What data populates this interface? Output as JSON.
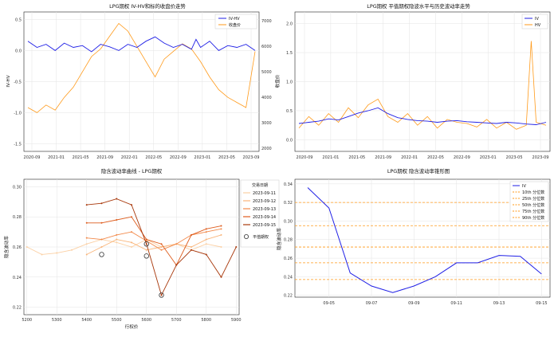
{
  "charts": [
    {
      "type": "line",
      "title": "LPG期权 IV-HV和标的收盘价走势",
      "ylabel_left": "IV-HV",
      "ylabel_right": "收盘价",
      "x_ticks": [
        "2020-09",
        "2021-01",
        "2021-05",
        "2021-09",
        "2022-01",
        "2022-05",
        "2022-09",
        "2023-01",
        "2023-05",
        "2023-09"
      ],
      "y_left_ticks": [
        0.5,
        0.0,
        -0.5,
        -1.0,
        -1.5
      ],
      "y_left_tick_labels": [
        "0.5",
        "0.0",
        "-0.5",
        "-1.0",
        "-1.5"
      ],
      "ylim_left": [
        -1.62,
        0.62
      ],
      "y_right_ticks": [
        2000,
        3000,
        4000,
        5000,
        6000,
        7000
      ],
      "y_right_tick_labels": [
        "2000",
        "3000",
        "4000",
        "5000",
        "6000",
        "7000"
      ],
      "ylim_right": [
        1880,
        7350
      ],
      "colors": {
        "left": "#1f1fe6",
        "right": "#ff9a1a",
        "right_axis": "#e03030"
      },
      "legend": {
        "position": "top-right",
        "entries": [
          "IV-HV",
          "收盘价"
        ]
      },
      "series": [
        {
          "name": "IV-HV",
          "axis": "left",
          "x": [
            0,
            2,
            4,
            6,
            8,
            10,
            12,
            14,
            16,
            18,
            20,
            22,
            24,
            26,
            28,
            30,
            32,
            34,
            36,
            37,
            38,
            40,
            42,
            44,
            46,
            48,
            50
          ],
          "y": [
            0.15,
            0.05,
            0.1,
            0.0,
            0.12,
            0.05,
            0.08,
            -0.02,
            0.1,
            0.06,
            0.0,
            0.1,
            0.05,
            0.15,
            0.22,
            0.12,
            0.05,
            0.1,
            0.02,
            0.18,
            0.05,
            0.15,
            0.0,
            0.08,
            0.05,
            0.1,
            0.0
          ]
        },
        {
          "name": "收盘价",
          "axis": "right",
          "x": [
            0,
            2,
            4,
            6,
            8,
            10,
            12,
            14,
            16,
            18,
            20,
            22,
            24,
            26,
            28,
            30,
            32,
            34,
            36,
            38,
            40,
            42,
            44,
            46,
            48,
            50
          ],
          "y": [
            3600,
            3400,
            3700,
            3500,
            4000,
            4400,
            5000,
            5600,
            5900,
            6400,
            6900,
            6600,
            6000,
            5400,
            4800,
            5500,
            5800,
            6100,
            5900,
            5400,
            4800,
            4300,
            4000,
            3800,
            3600,
            5800
          ]
        }
      ]
    },
    {
      "type": "line",
      "title": "LPG期权 平值期权隐波水平与历史波动率走势",
      "x_ticks": [
        "2020-09",
        "2021-01",
        "2021-05",
        "2021-09",
        "2022-01",
        "2022-05",
        "2022-09",
        "2023-01",
        "2023-05",
        "2023-09"
      ],
      "y_ticks": [
        0.0,
        0.5,
        1.0,
        1.5,
        2.0
      ],
      "y_tick_labels": [
        "0.0",
        "0.5",
        "1.0",
        "1.5",
        "2.0"
      ],
      "ylim": [
        -0.2,
        2.2
      ],
      "legend": {
        "position": "top-right",
        "entries": [
          "IV",
          "HV"
        ]
      },
      "colors": {
        "IV": "#1f1fe6",
        "HV": "#ff9a1a"
      },
      "series": [
        {
          "name": "IV",
          "x": [
            0,
            2,
            4,
            6,
            8,
            10,
            12,
            14,
            16,
            18,
            20,
            22,
            24,
            26,
            28,
            30,
            32,
            34,
            36,
            38,
            40,
            42,
            44,
            46,
            48,
            50
          ],
          "y": [
            0.28,
            0.3,
            0.32,
            0.36,
            0.34,
            0.4,
            0.46,
            0.5,
            0.55,
            0.45,
            0.38,
            0.35,
            0.33,
            0.32,
            0.3,
            0.32,
            0.33,
            0.31,
            0.3,
            0.29,
            0.28,
            0.3,
            0.29,
            0.27,
            0.26,
            0.3
          ]
        },
        {
          "name": "HV",
          "x": [
            0,
            2,
            4,
            6,
            8,
            10,
            12,
            14,
            16,
            18,
            20,
            22,
            24,
            26,
            28,
            30,
            32,
            34,
            36,
            38,
            40,
            42,
            44,
            46,
            47,
            48,
            50
          ],
          "y": [
            0.2,
            0.4,
            0.25,
            0.45,
            0.3,
            0.55,
            0.38,
            0.6,
            0.7,
            0.4,
            0.3,
            0.45,
            0.25,
            0.4,
            0.2,
            0.35,
            0.3,
            0.28,
            0.22,
            0.35,
            0.2,
            0.3,
            0.18,
            0.25,
            1.7,
            0.3,
            0.25
          ]
        }
      ]
    },
    {
      "type": "line",
      "title": "隐含波动率曲线 - LPG期权",
      "xlabel": "行权价",
      "ylabel": "隐含波动率",
      "x_ticks": [
        5200,
        5300,
        5400,
        5500,
        5600,
        5700,
        5800,
        5900
      ],
      "y_ticks": [
        0.22,
        0.24,
        0.26,
        0.28,
        0.3
      ],
      "y_tick_labels": [
        "0.22",
        "0.24",
        "0.26",
        "0.28",
        "0.30"
      ],
      "xlim": [
        5190,
        5910
      ],
      "ylim": [
        0.215,
        0.305
      ],
      "legend": {
        "title": "交易日期",
        "position": "top-right",
        "marker_label": "平值期权"
      },
      "series": [
        {
          "name": "2023-09-11",
          "color": "#fbd0a4",
          "x": [
            5200,
            5250,
            5300,
            5350,
            5400,
            5450,
            5500,
            5550,
            5600,
            5650,
            5700,
            5750,
            5800,
            5850
          ],
          "y": [
            0.26,
            0.255,
            0.256,
            0.258,
            0.262,
            0.265,
            0.263,
            0.26,
            0.265,
            0.26,
            0.262,
            0.258,
            0.262,
            0.26
          ]
        },
        {
          "name": "2023-09-12",
          "color": "#f9b57a",
          "x": [
            5400,
            5450,
            5500,
            5550,
            5600,
            5650,
            5700,
            5750,
            5800,
            5850
          ],
          "y": [
            0.255,
            0.26,
            0.265,
            0.263,
            0.258,
            0.26,
            0.262,
            0.26,
            0.265,
            0.268
          ]
        },
        {
          "name": "2023-09-13",
          "color": "#f2894a",
          "x": [
            5400,
            5450,
            5500,
            5550,
            5600,
            5650,
            5700,
            5750,
            5800,
            5850
          ],
          "y": [
            0.266,
            0.265,
            0.268,
            0.27,
            0.264,
            0.258,
            0.262,
            0.268,
            0.27,
            0.272
          ]
        },
        {
          "name": "2023-09-14",
          "color": "#de5c1d",
          "x": [
            5400,
            5450,
            5500,
            5550,
            5600,
            5650,
            5700,
            5750,
            5800,
            5850
          ],
          "y": [
            0.276,
            0.276,
            0.278,
            0.28,
            0.265,
            0.262,
            0.248,
            0.268,
            0.272,
            0.274
          ]
        },
        {
          "name": "2023-09-15",
          "color": "#a8380b",
          "x": [
            5400,
            5450,
            5500,
            5550,
            5600,
            5650,
            5700,
            5750,
            5800,
            5850,
            5900
          ],
          "y": [
            0.288,
            0.289,
            0.292,
            0.288,
            0.262,
            0.228,
            0.248,
            0.258,
            0.255,
            0.24,
            0.26
          ]
        }
      ],
      "atm_points": [
        {
          "x": 5450,
          "y": 0.255
        },
        {
          "x": 5600,
          "y": 0.254
        },
        {
          "x": 5600,
          "y": 0.262
        },
        {
          "x": 5650,
          "y": 0.228
        }
      ]
    },
    {
      "type": "line",
      "title": "LPG期权 隐含波动率锥形图",
      "ylabel": "隐含波动率",
      "x_ticks": [
        "09-05",
        "09-07",
        "09-09",
        "09-11",
        "09-13",
        "09-15"
      ],
      "y_ticks": [
        0.22,
        0.24,
        0.26,
        0.28,
        0.3,
        0.32,
        0.34
      ],
      "y_tick_labels": [
        "0.22",
        "0.24",
        "0.26",
        "0.28",
        "0.30",
        "0.32",
        "0.34"
      ],
      "xlim": [
        3.4,
        15.4
      ],
      "ylim": [
        0.218,
        0.345
      ],
      "legend": {
        "position": "top-right"
      },
      "colors": {
        "IV": "#1f1fe6",
        "percentile": "#ff9a1a"
      },
      "series": [
        {
          "name": "IV",
          "x": [
            4,
            5,
            6,
            7,
            8,
            9,
            10,
            11,
            12,
            13,
            14,
            15
          ],
          "y": [
            0.336,
            0.314,
            0.244,
            0.23,
            0.223,
            0.23,
            0.24,
            0.255,
            0.255,
            0.263,
            0.262,
            0.243
          ]
        }
      ],
      "percentiles": [
        {
          "label": "10th 分位数",
          "value": 0.237
        },
        {
          "label": "25th 分位数",
          "value": 0.255
        },
        {
          "label": "50th 分位数",
          "value": 0.272
        },
        {
          "label": "75th 分位数",
          "value": 0.295
        },
        {
          "label": "90th 分位数",
          "value": 0.32
        }
      ]
    }
  ]
}
